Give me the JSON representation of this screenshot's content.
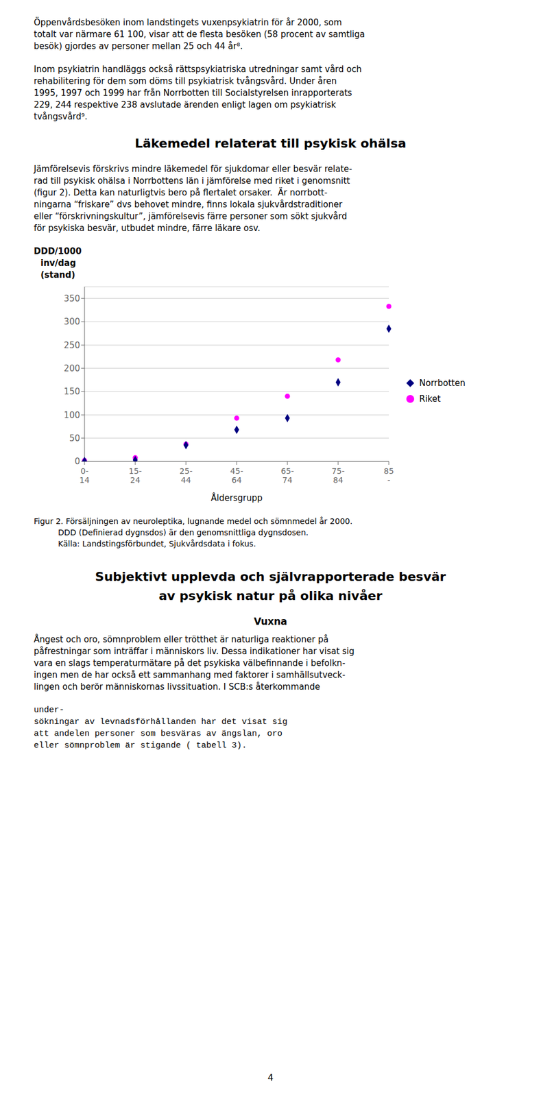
{
  "chart_data": {
    "type": "scatter",
    "ylabel": [
      "DDD/1000",
      "inv/dag",
      "(stand)"
    ],
    "xlabel": "Åldersgrupp",
    "categories": [
      "0-\n14",
      "15-\n24",
      "25-\n44",
      "45-\n64",
      "65-\n74",
      "75-\n84",
      "85\n-"
    ],
    "series": [
      {
        "name": "Norrbotten",
        "color": "#000080",
        "marker": "diamond",
        "values": [
          1,
          3,
          35,
          68,
          93,
          170,
          285
        ]
      },
      {
        "name": "Riket",
        "color": "#ff00ff",
        "marker": "circle",
        "values": [
          2,
          8,
          37,
          93,
          140,
          218,
          333
        ]
      }
    ],
    "ylim": [
      0,
      375
    ],
    "yticks": [
      0,
      50,
      100,
      150,
      200,
      250,
      300,
      350
    ],
    "grid": true,
    "legend": "right",
    "caption": [
      "Figur 2. Försäljningen av neuroleptika, lugnande medel och sömnmedel år 2000.",
      "DDD (Definierad dygnsdos) är den genomsnittliga dygnsdosen.",
      "Källa: Landstingsförbundet, Sjukvårdsdata i fokus."
    ]
  },
  "page_text": {
    "before": [
      {
        "lines": [
          "Öppenvårdsbesöken inom landstingets vuxenpsykiatrin för år 2000, som",
          "totalt var närmare 61 100, visar att de flesta besöken (58 procent av samtliga",
          "besök) gjordes av personer mellan 25 och 44 år⁸."
        ]
      },
      {
        "lines": [
          "Inom psykiatrin handläggs också rättspsykiatriska utredningar samt vård och",
          "rehabilitering för dem som döms till psykiatrisk tvångsvård. Under åren",
          "1995, 1997 och 1999 har från Norrbotten till Socialstyrelsen inrapporterats",
          "229, 244 respektive 238 avslutade ärenden enligt lagen om psykiatrisk",
          "tvångsvård⁹."
        ]
      },
      {
        "heading": [
          "Läkemedel relaterat till psykisk ohälsa"
        ]
      },
      {
        "lines": [
          "Jämförelsevis förskrivs mindre läkemedel för sjukdomar eller besvär relate-",
          "rad till psykisk ohälsa i Norrbottens län i jämförelse med riket i genomsnitt",
          "(figur 2). Detta kan naturligtvis bero på flertalet orsaker.  Är norrbott-",
          "ningarna “friskare” dvs behovet mindre, finns lokala sjukvårdstraditioner",
          "eller “förskrivningskultur”, jämförelsevis färre personer som sökt sjukvård",
          "för psykiska besvär, utbudet mindre, färre läkare osv."
        ]
      }
    ],
    "after": [
      {
        "heading": [
          "Subjektivt upplevda och självrapporterade besvär",
          "av psykisk natur på olika nivåer"
        ]
      },
      {
        "subheading": "Vuxna"
      },
      {
        "lines": [
          "Ångest och oro, sömnproblem eller trötthet är naturliga reaktioner på",
          "påfrestningar som inträffar i människors liv. Dessa indikationer har visat sig",
          "vara en slags temperaturmätare på det psykiska välbefinnande i befolkn-",
          "ingen men de har också ett sammanhang med faktorer i samhällsutveck-",
          "lingen och berör människornas livssituation. I SCB:s återkommande"
        ]
      },
      {
        "mono_lines": [
          "under-",
          "sökningar av levnadsförhållanden har det visat sig",
          "att andelen personer som besväras av ängslan, oro",
          "eller sömnproblem är stigande ( tabell 3)."
        ]
      }
    ],
    "page_number": "4"
  }
}
